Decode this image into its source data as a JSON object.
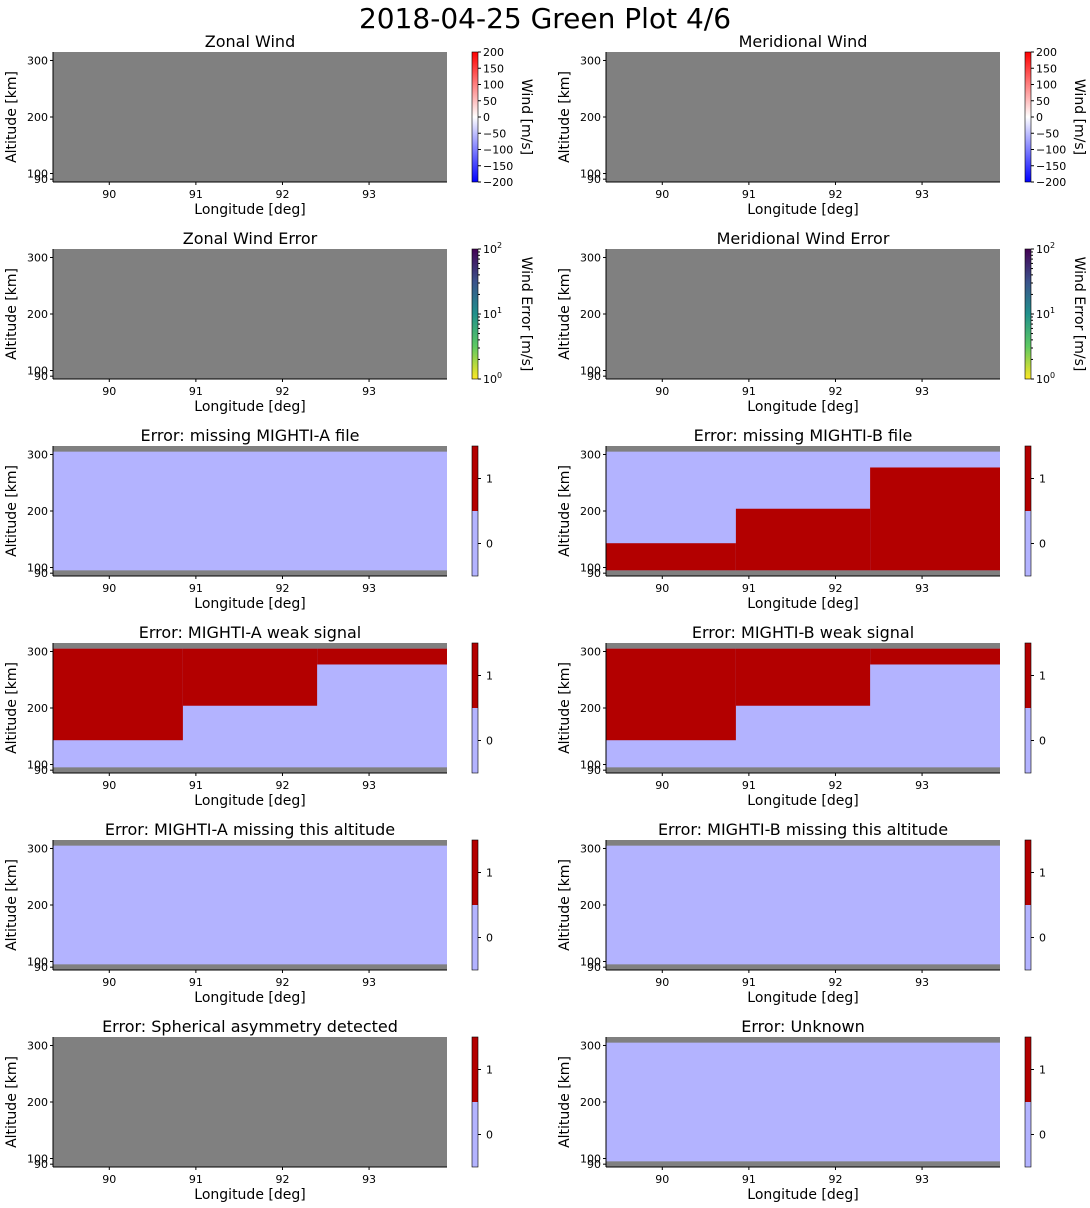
{
  "figure_title": "2018-04-25 Green Plot 4/6",
  "colors": {
    "missing": "#808080",
    "flag_zero": "#b3b3ff",
    "flag_one": "#b30000"
  },
  "chart_data": [
    {
      "type": "heatmap",
      "kind": "wind",
      "title": "Zonal Wind",
      "xlabel": "Longitude [deg]",
      "ylabel": "Altitude [km]",
      "xlim": [
        89.35,
        93.9
      ],
      "ylim": [
        85,
        315
      ],
      "xticks": [
        "90",
        "91",
        "92",
        "93"
      ],
      "yticks": [
        "100",
        "200",
        "300"
      ],
      "yticks_extra": [
        "90"
      ],
      "colorbar": {
        "label": "Wind [m/s]",
        "range": [
          -200,
          200
        ],
        "ticks": [
          "200",
          "150",
          "100",
          "50",
          "0",
          "−50",
          "−100",
          "−150",
          "−200"
        ]
      },
      "cells": []
    },
    {
      "type": "heatmap",
      "kind": "wind",
      "title": "Meridional Wind",
      "xlabel": "Longitude [deg]",
      "ylabel": "Altitude [km]",
      "xlim": [
        89.35,
        93.9
      ],
      "ylim": [
        85,
        315
      ],
      "xticks": [
        "90",
        "91",
        "92",
        "93"
      ],
      "yticks": [
        "100",
        "200",
        "300"
      ],
      "yticks_extra": [
        "90"
      ],
      "colorbar": {
        "label": "Wind [m/s]",
        "range": [
          -200,
          200
        ],
        "ticks": [
          "200",
          "150",
          "100",
          "50",
          "0",
          "−50",
          "−100",
          "−150",
          "−200"
        ]
      },
      "cells": []
    },
    {
      "type": "heatmap",
      "kind": "error",
      "title": "Zonal Wind Error",
      "xlabel": "Longitude [deg]",
      "ylabel": "Altitude [km]",
      "xlim": [
        89.35,
        93.9
      ],
      "ylim": [
        85,
        315
      ],
      "xticks": [
        "90",
        "91",
        "92",
        "93"
      ],
      "yticks": [
        "100",
        "200",
        "300"
      ],
      "yticks_extra": [
        "90"
      ],
      "colorbar": {
        "label": "Wind Error [m/s]",
        "scale": "log",
        "range": [
          1,
          100
        ],
        "ticks": [
          "10",
          "10",
          "10"
        ],
        "tick_exponents": [
          "2",
          "1",
          "0"
        ]
      },
      "cells": []
    },
    {
      "type": "heatmap",
      "kind": "error",
      "title": "Meridional Wind Error",
      "xlabel": "Longitude [deg]",
      "ylabel": "Altitude [km]",
      "xlim": [
        89.35,
        93.9
      ],
      "ylim": [
        85,
        315
      ],
      "xticks": [
        "90",
        "91",
        "92",
        "93"
      ],
      "yticks": [
        "100",
        "200",
        "300"
      ],
      "yticks_extra": [
        "90"
      ],
      "colorbar": {
        "label": "Wind Error [m/s]",
        "scale": "log",
        "range": [
          1,
          100
        ],
        "ticks": [
          "10",
          "10",
          "10"
        ],
        "tick_exponents": [
          "2",
          "1",
          "0"
        ]
      },
      "cells": []
    },
    {
      "type": "heatmap",
      "kind": "flag",
      "title": "Error: missing MIGHTI-A file",
      "xlabel": "Longitude [deg]",
      "ylabel": "Altitude [km]",
      "xlim": [
        89.35,
        93.9
      ],
      "ylim": [
        85,
        315
      ],
      "xticks": [
        "90",
        "91",
        "92",
        "93"
      ],
      "yticks": [
        "100",
        "200",
        "300"
      ],
      "yticks_extra": [
        "90"
      ],
      "colorbar": {
        "ticks": [
          "1",
          "0"
        ]
      },
      "cells": [
        {
          "lon": [
            89.35,
            93.9
          ],
          "alt": [
            95,
            305
          ],
          "value": 0
        }
      ]
    },
    {
      "type": "heatmap",
      "kind": "flag",
      "title": "Error: missing MIGHTI-B file",
      "xlabel": "Longitude [deg]",
      "ylabel": "Altitude [km]",
      "xlim": [
        89.35,
        93.9
      ],
      "ylim": [
        85,
        315
      ],
      "xticks": [
        "90",
        "91",
        "92",
        "93"
      ],
      "yticks": [
        "100",
        "200",
        "300"
      ],
      "yticks_extra": [
        "90"
      ],
      "colorbar": {
        "ticks": [
          "1",
          "0"
        ]
      },
      "cells": [
        {
          "lon": [
            89.35,
            93.9
          ],
          "alt": [
            95,
            305
          ],
          "value": 0
        },
        {
          "lon": [
            89.35,
            90.85
          ],
          "alt": [
            95,
            143
          ],
          "value": 1
        },
        {
          "lon": [
            90.85,
            92.4
          ],
          "alt": [
            95,
            204
          ],
          "value": 1
        },
        {
          "lon": [
            92.4,
            93.9
          ],
          "alt": [
            95,
            277
          ],
          "value": 1
        }
      ]
    },
    {
      "type": "heatmap",
      "kind": "flag",
      "title": "Error: MIGHTI-A weak signal",
      "xlabel": "Longitude [deg]",
      "ylabel": "Altitude [km]",
      "xlim": [
        89.35,
        93.9
      ],
      "ylim": [
        85,
        315
      ],
      "xticks": [
        "90",
        "91",
        "92",
        "93"
      ],
      "yticks": [
        "100",
        "200",
        "300"
      ],
      "yticks_extra": [
        "90"
      ],
      "colorbar": {
        "ticks": [
          "1",
          "0"
        ]
      },
      "cells": [
        {
          "lon": [
            89.35,
            93.9
          ],
          "alt": [
            95,
            305
          ],
          "value": 0
        },
        {
          "lon": [
            89.35,
            90.85
          ],
          "alt": [
            143,
            305
          ],
          "value": 1
        },
        {
          "lon": [
            90.85,
            92.4
          ],
          "alt": [
            204,
            305
          ],
          "value": 1
        },
        {
          "lon": [
            92.4,
            93.9
          ],
          "alt": [
            277,
            305
          ],
          "value": 1
        }
      ]
    },
    {
      "type": "heatmap",
      "kind": "flag",
      "title": "Error: MIGHTI-B weak signal",
      "xlabel": "Longitude [deg]",
      "ylabel": "Altitude [km]",
      "xlim": [
        89.35,
        93.9
      ],
      "ylim": [
        85,
        315
      ],
      "xticks": [
        "90",
        "91",
        "92",
        "93"
      ],
      "yticks": [
        "100",
        "200",
        "300"
      ],
      "yticks_extra": [
        "90"
      ],
      "colorbar": {
        "ticks": [
          "1",
          "0"
        ]
      },
      "cells": [
        {
          "lon": [
            89.35,
            93.9
          ],
          "alt": [
            95,
            305
          ],
          "value": 0
        },
        {
          "lon": [
            89.35,
            90.85
          ],
          "alt": [
            143,
            305
          ],
          "value": 1
        },
        {
          "lon": [
            90.85,
            92.4
          ],
          "alt": [
            204,
            305
          ],
          "value": 1
        },
        {
          "lon": [
            92.4,
            93.9
          ],
          "alt": [
            277,
            305
          ],
          "value": 1
        }
      ]
    },
    {
      "type": "heatmap",
      "kind": "flag",
      "title": "Error: MIGHTI-A missing this altitude",
      "xlabel": "Longitude [deg]",
      "ylabel": "Altitude [km]",
      "xlim": [
        89.35,
        93.9
      ],
      "ylim": [
        85,
        315
      ],
      "xticks": [
        "90",
        "91",
        "92",
        "93"
      ],
      "yticks": [
        "100",
        "200",
        "300"
      ],
      "yticks_extra": [
        "90"
      ],
      "colorbar": {
        "ticks": [
          "1",
          "0"
        ]
      },
      "cells": [
        {
          "lon": [
            89.35,
            93.9
          ],
          "alt": [
            95,
            305
          ],
          "value": 0
        }
      ]
    },
    {
      "type": "heatmap",
      "kind": "flag",
      "title": "Error: MIGHTI-B missing this altitude",
      "xlabel": "Longitude [deg]",
      "ylabel": "Altitude [km]",
      "xlim": [
        89.35,
        93.9
      ],
      "ylim": [
        85,
        315
      ],
      "xticks": [
        "90",
        "91",
        "92",
        "93"
      ],
      "yticks": [
        "100",
        "200",
        "300"
      ],
      "yticks_extra": [
        "90"
      ],
      "colorbar": {
        "ticks": [
          "1",
          "0"
        ]
      },
      "cells": [
        {
          "lon": [
            89.35,
            93.9
          ],
          "alt": [
            95,
            305
          ],
          "value": 0
        }
      ]
    },
    {
      "type": "heatmap",
      "kind": "flag",
      "title": "Error: Spherical asymmetry detected",
      "xlabel": "Longitude [deg]",
      "ylabel": "Altitude [km]",
      "xlim": [
        89.35,
        93.9
      ],
      "ylim": [
        85,
        315
      ],
      "xticks": [
        "90",
        "91",
        "92",
        "93"
      ],
      "yticks": [
        "100",
        "200",
        "300"
      ],
      "yticks_extra": [
        "90"
      ],
      "colorbar": {
        "ticks": [
          "1",
          "0"
        ]
      },
      "cells": []
    },
    {
      "type": "heatmap",
      "kind": "flag",
      "title": "Error: Unknown",
      "xlabel": "Longitude [deg]",
      "ylabel": "Altitude [km]",
      "xlim": [
        89.35,
        93.9
      ],
      "ylim": [
        85,
        315
      ],
      "xticks": [
        "90",
        "91",
        "92",
        "93"
      ],
      "yticks": [
        "100",
        "200",
        "300"
      ],
      "yticks_extra": [
        "90"
      ],
      "colorbar": {
        "ticks": [
          "1",
          "0"
        ]
      },
      "cells": [
        {
          "lon": [
            89.35,
            93.9
          ],
          "alt": [
            95,
            305
          ],
          "value": 0
        }
      ]
    }
  ]
}
